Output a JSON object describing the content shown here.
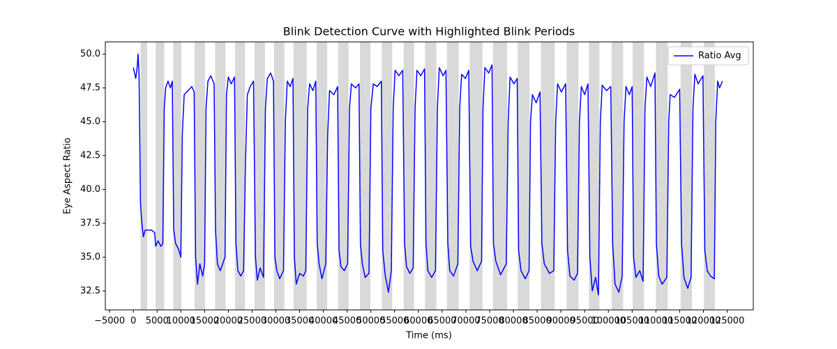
{
  "chart_data": {
    "type": "line",
    "title": "Blink Detection Curve with Highlighted Blink Periods",
    "x_label": "Time (ms)",
    "y_label": "Eye Aspect Ratio",
    "xlim": [
      -5900,
      130500
    ],
    "ylim": [
      31.1,
      50.9
    ],
    "xticks": [
      {
        "value": -5000,
        "label": "−5000"
      },
      0,
      5000,
      10000,
      15000,
      20000,
      25000,
      30000,
      35000,
      40000,
      45000,
      50000,
      55000,
      60000,
      65000,
      70000,
      75000,
      80000,
      85000,
      90000,
      95000,
      100000,
      105000,
      110000,
      115000,
      120000,
      125000
    ],
    "yticks": [
      32.5,
      {
        "value": 35,
        "label": "35.0"
      },
      37.5,
      {
        "value": 40,
        "label": "40.0"
      },
      42.5,
      {
        "value": 45,
        "label": "45.0"
      },
      47.5,
      {
        "value": 50,
        "label": "50.0"
      }
    ],
    "legend": "upper right",
    "span_color": "#d9d9d9",
    "blink_periods": [
      [
        1500,
        2900
      ],
      [
        4700,
        6500
      ],
      [
        8400,
        10100
      ],
      [
        12900,
        15100
      ],
      [
        17200,
        19400
      ],
      [
        21400,
        23500
      ],
      [
        25500,
        27700
      ],
      [
        29600,
        31800
      ],
      [
        33700,
        36500
      ],
      [
        38600,
        40800
      ],
      [
        43100,
        45300
      ],
      [
        47700,
        49900
      ],
      [
        52300,
        54500
      ],
      [
        56900,
        59100
      ],
      [
        61400,
        63800
      ],
      [
        66000,
        68500
      ],
      [
        70800,
        73500
      ],
      [
        75700,
        78700
      ],
      [
        80900,
        83400
      ],
      [
        85800,
        88700
      ],
      [
        91200,
        93700
      ],
      [
        95900,
        98100
      ],
      [
        100700,
        103100
      ],
      [
        105100,
        107500
      ],
      [
        110000,
        112500
      ],
      [
        115200,
        117600
      ],
      [
        120100,
        122400
      ]
    ],
    "x": [
      0,
      500,
      800,
      1000,
      1200,
      1500,
      1800,
      2100,
      2500,
      3200,
      3800,
      4500,
      4700,
      5200,
      5800,
      6200,
      6500,
      6800,
      7300,
      7800,
      8200,
      8500,
      8900,
      9500,
      10000,
      10300,
      10700,
      11500,
      12300,
      12800,
      13100,
      13500,
      14000,
      14600,
      15000,
      15300,
      15700,
      16300,
      17000,
      17300,
      17700,
      18300,
      18900,
      19300,
      19600,
      20000,
      20600,
      21300,
      21600,
      22000,
      22600,
      23200,
      23600,
      24000,
      24600,
      25300,
      25700,
      26100,
      26700,
      27400,
      27800,
      28200,
      28900,
      29500,
      29800,
      30200,
      30800,
      31600,
      32000,
      32400,
      33000,
      33600,
      33900,
      34300,
      35000,
      35800,
      36300,
      36700,
      37100,
      37800,
      38400,
      38700,
      39100,
      39700,
      40500,
      40900,
      41300,
      42200,
      43000,
      43300,
      43700,
      44400,
      45100,
      45500,
      45900,
      46800,
      47500,
      47800,
      48200,
      48800,
      49600,
      50000,
      50500,
      51300,
      52200,
      52500,
      53000,
      53700,
      54300,
      54700,
      55100,
      55900,
      56700,
      57100,
      57500,
      58200,
      58900,
      59300,
      59700,
      60500,
      61300,
      61600,
      62000,
      62800,
      63600,
      64000,
      64400,
      65200,
      65800,
      66200,
      66600,
      67400,
      68300,
      68700,
      69100,
      69900,
      70600,
      71000,
      71500,
      72400,
      73300,
      73600,
      74000,
      74800,
      75500,
      75800,
      76300,
      77300,
      78500,
      78900,
      79300,
      80100,
      80800,
      81100,
      81600,
      82500,
      83300,
      83600,
      84000,
      84800,
      85600,
      86000,
      86500,
      87600,
      88500,
      88900,
      89300,
      90100,
      91000,
      91400,
      91900,
      92800,
      93500,
      93900,
      94300,
      95000,
      95700,
      96100,
      96600,
      97300,
      97900,
      98300,
      98700,
      99600,
      100500,
      100900,
      101400,
      102200,
      102900,
      103300,
      103700,
      104400,
      105000,
      105300,
      105800,
      106600,
      107300,
      107700,
      108100,
      108900,
      109800,
      110100,
      110600,
      111300,
      112300,
      112700,
      113000,
      113900,
      115000,
      115400,
      115900,
      116700,
      117400,
      117800,
      118200,
      118900,
      119900,
      120300,
      120800,
      121500,
      122300,
      122600,
      123000,
      123400,
      124000
    ],
    "series": [
      {
        "name": "Ratio Avg",
        "color": "#0000ff",
        "values": [
          49,
          48.2,
          49,
          50,
          48.5,
          39,
          37.5,
          36.5,
          37,
          37,
          37,
          36.8,
          35.8,
          36.2,
          35.8,
          36,
          46,
          47.5,
          48,
          47.5,
          48,
          37,
          36,
          35.6,
          35,
          44,
          47,
          47.3,
          47.6,
          47.2,
          35,
          33,
          34.5,
          33.6,
          34.5,
          46,
          48,
          48.4,
          47.8,
          37,
          34.5,
          34,
          34.6,
          35,
          47,
          48.3,
          47.8,
          48.3,
          36,
          34,
          33.6,
          34,
          42,
          47,
          47.6,
          48,
          35,
          33.3,
          34.2,
          33.5,
          46,
          48.2,
          48.6,
          48,
          35,
          34,
          33.4,
          34,
          45,
          48,
          47.6,
          48.2,
          35,
          33,
          33.8,
          33.6,
          34,
          46,
          47.8,
          47.3,
          48,
          36,
          34.5,
          33.4,
          34.5,
          44,
          47.3,
          47,
          47.6,
          35.5,
          34.3,
          34,
          34.5,
          46,
          47.8,
          47.5,
          47.8,
          36,
          34.5,
          33.5,
          33.8,
          46,
          47.8,
          47.6,
          48,
          35.5,
          33.7,
          32.4,
          34,
          46,
          48.8,
          48.4,
          48.8,
          36,
          34.3,
          33.8,
          34.2,
          46,
          48.8,
          48.4,
          48.9,
          36,
          34,
          33.5,
          34,
          46,
          49,
          48.4,
          48.8,
          36,
          34,
          33.6,
          34.5,
          46,
          48.5,
          48.2,
          48.8,
          35.8,
          34.7,
          34,
          34.7,
          46,
          49,
          48.6,
          49.2,
          36,
          34.7,
          33.7,
          34.5,
          45,
          48.3,
          47.8,
          48.2,
          35.5,
          34,
          33.4,
          34,
          45,
          47,
          46.4,
          47.2,
          36,
          34.5,
          33.8,
          34,
          45,
          47.8,
          47.2,
          47.8,
          35.5,
          33.6,
          33.3,
          33.8,
          45,
          47.6,
          47,
          47.8,
          35,
          32.5,
          33.5,
          32.2,
          45,
          47.7,
          47.3,
          47.6,
          36,
          33,
          32.4,
          33.6,
          45,
          47.6,
          47,
          47.6,
          35,
          33.5,
          34,
          33.2,
          46,
          48.3,
          47.6,
          48.6,
          36,
          33.6,
          33,
          33.5,
          45,
          47,
          46.8,
          47.4,
          36,
          33.5,
          32.7,
          33.5,
          46,
          48.5,
          47.8,
          48.4,
          35.5,
          34,
          33.6,
          33.4,
          45,
          48,
          47.5,
          48
        ]
      }
    ]
  }
}
